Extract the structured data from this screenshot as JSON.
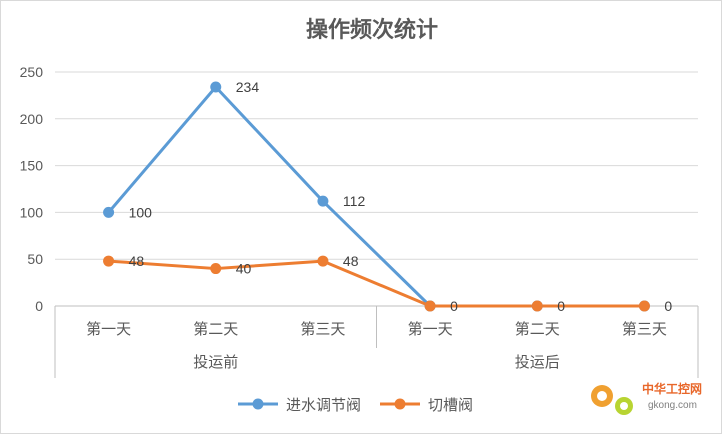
{
  "chart_data": {
    "type": "line",
    "title": "操作频次统计",
    "groups": [
      {
        "label": "投运前",
        "categories": [
          "第一天",
          "第二天",
          "第三天"
        ]
      },
      {
        "label": "投运后",
        "categories": [
          "第一天",
          "第二天",
          "第三天"
        ]
      }
    ],
    "categories": [
      "第一天",
      "第二天",
      "第三天",
      "第一天",
      "第二天",
      "第三天"
    ],
    "series": [
      {
        "name": "进水调节阀",
        "color": "#5b9bd5",
        "values": [
          100,
          234,
          112,
          0,
          0,
          0
        ],
        "labels": [
          "100",
          "234",
          "112",
          "",
          "",
          ""
        ]
      },
      {
        "name": "切槽阀",
        "color": "#ed7d31",
        "values": [
          48,
          40,
          48,
          0,
          0,
          0
        ],
        "labels": [
          "48",
          "40",
          "48",
          "0",
          "0",
          "0"
        ]
      }
    ],
    "ylim": [
      0,
      250
    ],
    "yticks": [
      0,
      50,
      100,
      150,
      200,
      250
    ],
    "grid": true,
    "legend": "bottom"
  },
  "watermark": {
    "name": "中华工控网",
    "url": "gkong.com"
  }
}
